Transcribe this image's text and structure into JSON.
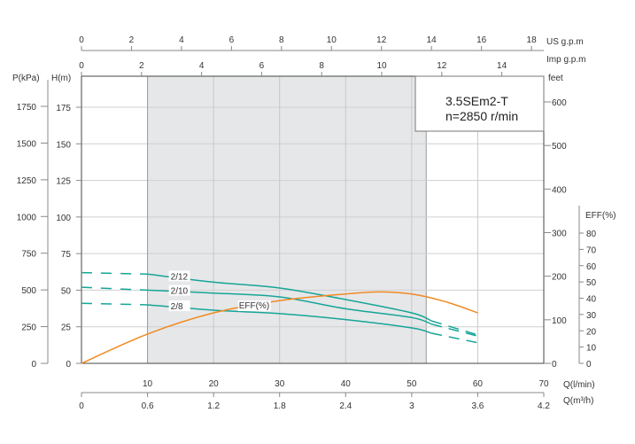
{
  "chart_data": {
    "type": "line",
    "title": "3.5SEm2-T",
    "subtitle": "n=2850 r/min",
    "xlabel": "Q(l/min)",
    "xlabel_secondary": "Q(m³/h)",
    "xlabel_top_us": "US  g.p.m",
    "xlabel_top_imp": "Imp  g.p.m",
    "ylabel_left_p": "P(kPa)",
    "ylabel_left_h": "H(m)",
    "ylabel_right_feet": "feet",
    "ylabel_eff": "EFF(%)",
    "xlim": [
      0,
      70
    ],
    "ylim": [
      0,
      196
    ],
    "x_ticks": [
      10,
      20,
      30,
      40,
      50,
      60,
      70
    ],
    "x_ticks_m3h": [
      "0",
      "0.6",
      "1.2",
      "1.8",
      "2.4",
      "3",
      "3.6",
      "4.2"
    ],
    "x_ticks_us_gpm": [
      0,
      2,
      4,
      6,
      8,
      10,
      12,
      14,
      16,
      18
    ],
    "x_ticks_imp_gpm": [
      0,
      2,
      4,
      6,
      8,
      10,
      12,
      14
    ],
    "h_ticks": [
      0,
      25,
      50,
      75,
      100,
      125,
      150,
      175
    ],
    "p_ticks": [
      0,
      250,
      500,
      750,
      1000,
      1250,
      1500,
      1750
    ],
    "feet_ticks": [
      0,
      100,
      200,
      300,
      400,
      500,
      600
    ],
    "eff_ticks": [
      0,
      10,
      20,
      30,
      40,
      50,
      60,
      70,
      80
    ],
    "grid": true,
    "recommended_range_lmin": [
      10,
      52.2
    ],
    "series": [
      {
        "name": "2/12",
        "label": "2/12",
        "color": "#17a597",
        "x": [
          0,
          10,
          20,
          30,
          40,
          50,
          53,
          60
        ],
        "values": [
          62,
          61,
          55.5,
          51.5,
          43.6,
          34.5,
          29,
          19.4
        ],
        "solid_range": [
          10,
          53
        ]
      },
      {
        "name": "2/10",
        "label": "2/10",
        "color": "#17a597",
        "x": [
          0,
          10,
          20,
          30,
          40,
          50,
          53,
          60
        ],
        "values": [
          52,
          50,
          48,
          45.4,
          37.3,
          31.3,
          26.8,
          18.6
        ],
        "solid_range": [
          10,
          53
        ]
      },
      {
        "name": "2/8",
        "label": "2/8",
        "color": "#17a597",
        "x": [
          0,
          10,
          20,
          30,
          40,
          50,
          53,
          60
        ],
        "values": [
          41,
          40,
          36.3,
          34,
          29.9,
          24.2,
          20.6,
          14.1
        ],
        "solid_range": [
          10,
          53
        ]
      },
      {
        "name": "EFF(%)",
        "label": "EFF(%)",
        "color": "#f08a24",
        "axis": "eff",
        "x": [
          0,
          10,
          20,
          30,
          40,
          45,
          50,
          55,
          60
        ],
        "values": [
          0,
          18,
          31,
          38.5,
          42.6,
          43.9,
          42.6,
          38,
          31
        ]
      }
    ]
  }
}
